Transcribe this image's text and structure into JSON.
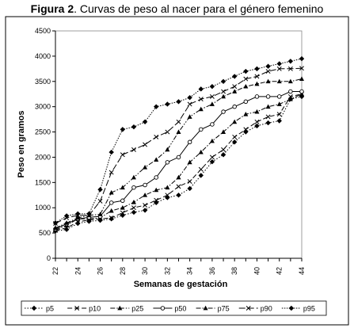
{
  "figure": {
    "label": "Figura 2",
    "caption": ". Curvas de peso al nacer para el género femenino"
  },
  "chart_data": {
    "type": "line",
    "title": "Figura 2. Curvas de peso al nacer para el género femenino",
    "xlabel": "Semanas de gestación",
    "ylabel": "Peso en gramos",
    "xlim": [
      22,
      44
    ],
    "ylim": [
      0,
      4500
    ],
    "x_ticks": [
      22,
      24,
      26,
      28,
      30,
      32,
      34,
      36,
      38,
      40,
      42,
      44
    ],
    "y_ticks": [
      0,
      500,
      1000,
      1500,
      2000,
      2500,
      3000,
      3500,
      4000,
      4500
    ],
    "grid": false,
    "legend_position": "bottom",
    "x": [
      22,
      23,
      24,
      25,
      26,
      27,
      28,
      29,
      30,
      31,
      32,
      33,
      34,
      35,
      36,
      37,
      38,
      39,
      40,
      41,
      42,
      43,
      44
    ],
    "series": [
      {
        "name": "p5",
        "marker": "diamond",
        "values": [
          540,
          570,
          690,
          730,
          750,
          780,
          850,
          910,
          950,
          1100,
          1200,
          1250,
          1380,
          1640,
          1910,
          2050,
          2300,
          2500,
          2620,
          2680,
          2720,
          3150,
          3200
        ]
      },
      {
        "name": "p10",
        "marker": "x",
        "values": [
          550,
          600,
          720,
          760,
          780,
          800,
          900,
          1000,
          1050,
          1150,
          1250,
          1420,
          1520,
          1760,
          2000,
          2150,
          2400,
          2550,
          2700,
          2800,
          2850,
          3200,
          3250
        ]
      },
      {
        "name": "p25",
        "marker": "triangle",
        "values": [
          560,
          650,
          780,
          780,
          800,
          940,
          1000,
          1110,
          1250,
          1350,
          1400,
          1600,
          1900,
          2100,
          2320,
          2500,
          2700,
          2850,
          2900,
          3000,
          3050,
          3150,
          3250
        ]
      },
      {
        "name": "p50",
        "marker": "circle",
        "values": [
          580,
          680,
          780,
          810,
          830,
          1100,
          1140,
          1400,
          1450,
          1600,
          1900,
          2000,
          2300,
          2550,
          2650,
          2900,
          3000,
          3100,
          3200,
          3200,
          3200,
          3300,
          3300
        ]
      },
      {
        "name": "p75",
        "marker": "triangle",
        "values": [
          600,
          700,
          800,
          850,
          870,
          1300,
          1400,
          1600,
          1800,
          1950,
          2150,
          2500,
          2800,
          2950,
          3050,
          3200,
          3300,
          3400,
          3450,
          3500,
          3500,
          3500,
          3550
        ]
      },
      {
        "name": "p90",
        "marker": "x",
        "values": [
          690,
          800,
          850,
          850,
          1130,
          1700,
          2050,
          2150,
          2250,
          2400,
          2500,
          2700,
          3050,
          3150,
          3200,
          3300,
          3400,
          3550,
          3600,
          3700,
          3750,
          3750,
          3760
        ]
      },
      {
        "name": "p95",
        "marker": "diamond",
        "values": [
          700,
          840,
          880,
          880,
          1360,
          2100,
          2550,
          2600,
          2700,
          3000,
          3050,
          3100,
          3180,
          3350,
          3400,
          3500,
          3600,
          3700,
          3750,
          3800,
          3850,
          3900,
          3950
        ]
      }
    ]
  }
}
